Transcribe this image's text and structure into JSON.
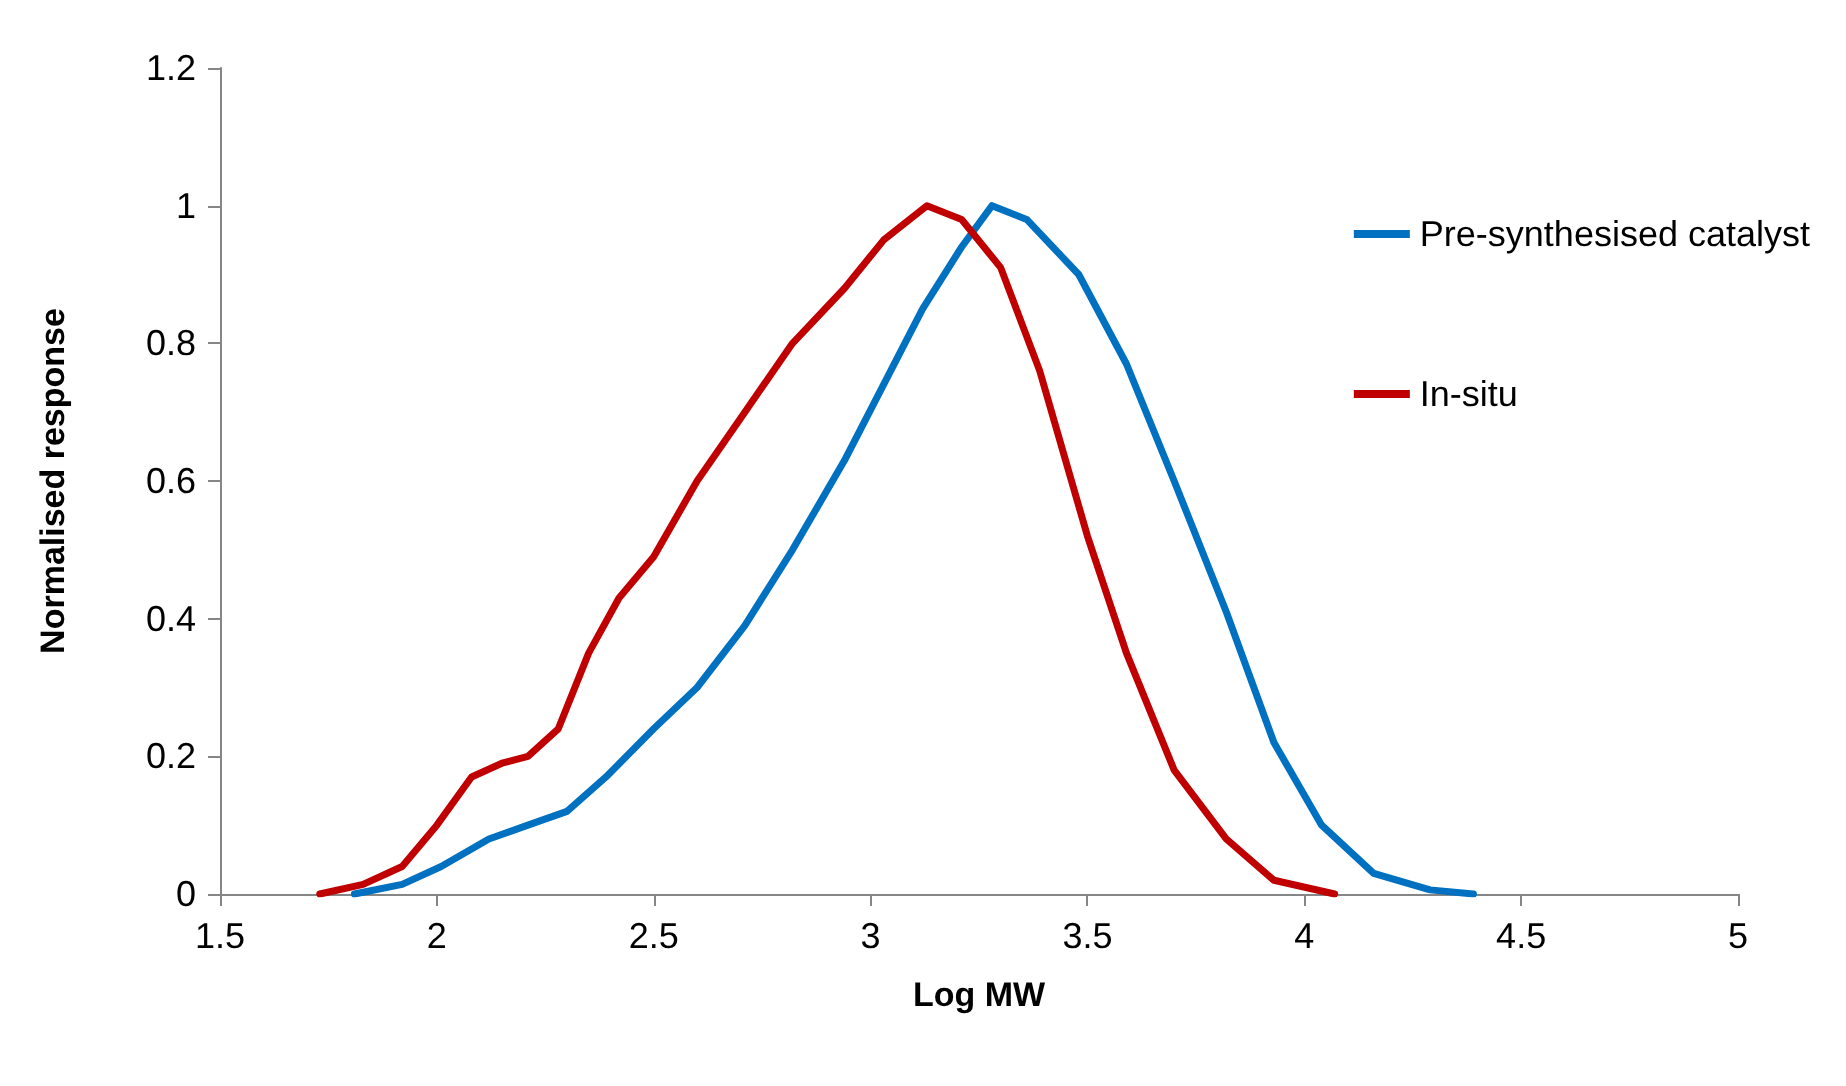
{
  "chart_data": {
    "type": "line",
    "xlabel": "Log MW",
    "ylabel": "Normalised response",
    "xlim": [
      1.5,
      5
    ],
    "xticks": [
      1.5,
      2,
      2.5,
      3,
      3.5,
      4,
      4.5,
      5
    ],
    "ylim": [
      0,
      1.2
    ],
    "yticks": [
      0,
      0.2,
      0.4,
      0.6,
      0.8,
      1,
      1.2
    ],
    "grid": false,
    "legend": "right",
    "marker": "none",
    "line_style": "solid",
    "series": [
      {
        "name": "Pre-synthesised catalyst",
        "color": "#0070c0",
        "x": [
          1.81,
          1.92,
          2.01,
          2.12,
          2.21,
          2.3,
          2.39,
          2.5,
          2.6,
          2.71,
          2.82,
          2.94,
          3.03,
          3.12,
          3.21,
          3.28,
          3.36,
          3.48,
          3.59,
          3.7,
          3.82,
          3.93,
          4.04,
          4.16,
          4.29,
          4.39
        ],
        "values": [
          0,
          0.014,
          0.04,
          0.08,
          0.1,
          0.12,
          0.17,
          0.24,
          0.3,
          0.39,
          0.5,
          0.63,
          0.74,
          0.85,
          0.94,
          1,
          0.98,
          0.9,
          0.77,
          0.6,
          0.41,
          0.22,
          0.1,
          0.03,
          0.006,
          0
        ]
      },
      {
        "name": "In-situ",
        "color": "#c00000",
        "x": [
          1.73,
          1.83,
          1.92,
          2,
          2.08,
          2.15,
          2.21,
          2.28,
          2.35,
          2.42,
          2.5,
          2.6,
          2.71,
          2.82,
          2.94,
          3.03,
          3.13,
          3.21,
          3.3,
          3.39,
          3.5,
          3.59,
          3.7,
          3.82,
          3.93,
          4.07
        ],
        "values": [
          0,
          0.014,
          0.04,
          0.1,
          0.17,
          0.19,
          0.2,
          0.24,
          0.35,
          0.43,
          0.49,
          0.6,
          0.7,
          0.8,
          0.88,
          0.95,
          1,
          0.98,
          0.91,
          0.76,
          0.52,
          0.35,
          0.18,
          0.08,
          0.02,
          0
        ]
      }
    ]
  }
}
